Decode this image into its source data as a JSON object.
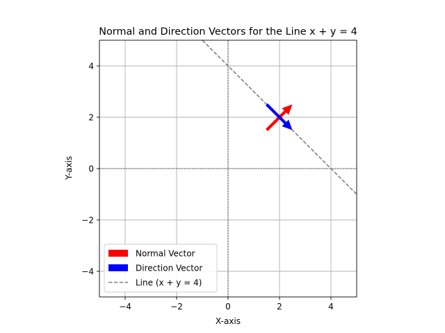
{
  "chart_data": {
    "type": "line",
    "title": "Normal and Direction Vectors for the Line x + y = 4",
    "xlabel": "X-axis",
    "ylabel": "Y-axis",
    "xlim": [
      -5,
      5
    ],
    "ylim": [
      -5,
      5
    ],
    "grid": true,
    "xticks": [
      -4,
      -2,
      0,
      2,
      4
    ],
    "yticks": [
      -4,
      -2,
      0,
      2,
      4
    ],
    "xtick_labels": [
      "−4",
      "−2",
      "0",
      "2",
      "4"
    ],
    "ytick_labels": [
      "−4",
      "−2",
      "0",
      "2",
      "4"
    ],
    "reference_lines": [
      {
        "orientation": "horizontal",
        "value": 0,
        "style": "dashed",
        "color": "#000000"
      },
      {
        "orientation": "vertical",
        "value": 0,
        "style": "dashed",
        "color": "#000000"
      }
    ],
    "series": [
      {
        "name": "Normal Vector",
        "kind": "arrow",
        "color": "#ff0000",
        "from": [
          1.5,
          1.5
        ],
        "to": [
          2.5,
          2.5
        ]
      },
      {
        "name": "Direction Vector",
        "kind": "arrow",
        "color": "#0000ff",
        "from": [
          1.5,
          2.5
        ],
        "to": [
          2.5,
          1.5
        ]
      },
      {
        "name": "Line (x + y = 4)",
        "kind": "line",
        "style": "dashed",
        "color": "#808080",
        "x": [
          -1,
          5
        ],
        "y": [
          5,
          -1
        ]
      }
    ],
    "legend": {
      "position": "lower-left",
      "entries": [
        "Normal Vector",
        "Direction Vector",
        "Line (x + y = 4)"
      ]
    }
  }
}
